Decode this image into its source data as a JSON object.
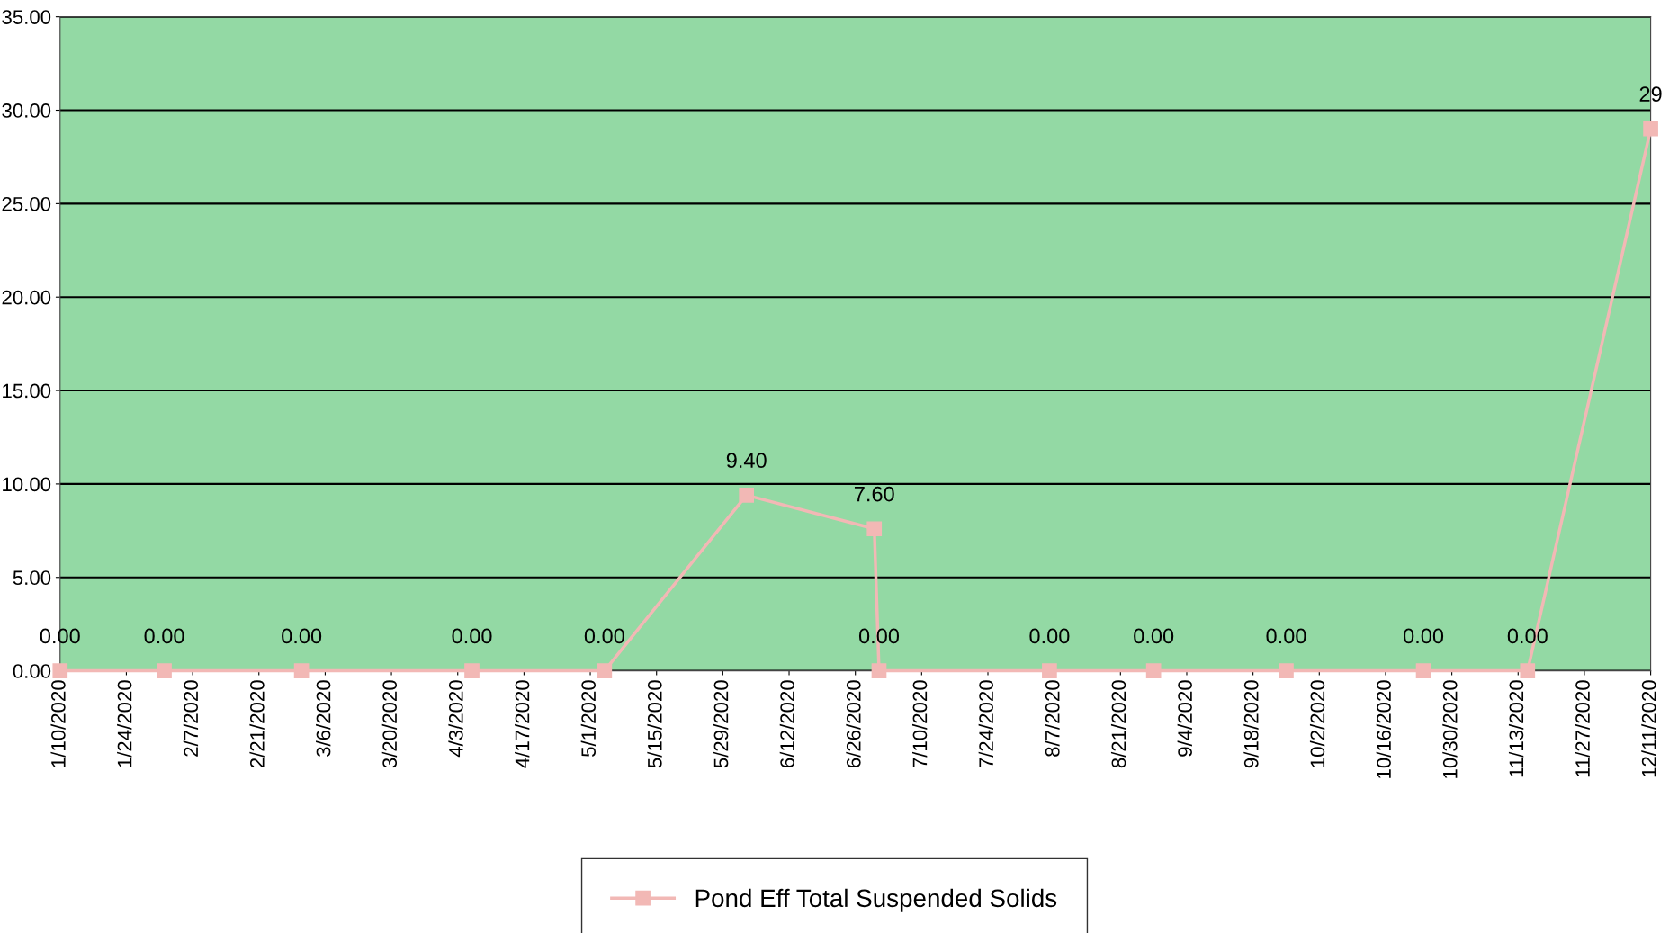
{
  "chart_data": {
    "type": "line",
    "x": [
      "2020-01-10",
      "2020-02-01",
      "2020-03-01",
      "2020-04-06",
      "2020-05-04",
      "2020-06-03",
      "2020-06-30",
      "2020-07-01",
      "2020-08-06",
      "2020-08-28",
      "2020-09-25",
      "2020-10-24",
      "2020-11-15",
      "2020-12-11"
    ],
    "series": [
      {
        "name": "Pond Eff Total Suspended Solids",
        "color": "#f2b8b5",
        "values": [
          0,
          0,
          0,
          0,
          0,
          9.4,
          7.6,
          0,
          0,
          0,
          0,
          0,
          0,
          29
        ],
        "value_labels": [
          "0.00",
          "0.00",
          "0.00",
          "0.00",
          "0.00",
          "9.40",
          "7.60",
          "0.00",
          "0.00",
          "0.00",
          "0.00",
          "0.00",
          "0.00",
          "29"
        ]
      }
    ],
    "xlim": [
      "2020-01-10",
      "2020-12-11"
    ],
    "xticks": [
      {
        "value": "2020-01-10",
        "label": "1/10/2020"
      },
      {
        "value": "2020-01-24",
        "label": "1/24/2020"
      },
      {
        "value": "2020-02-07",
        "label": "2/7/2020"
      },
      {
        "value": "2020-02-21",
        "label": "2/21/2020"
      },
      {
        "value": "2020-03-06",
        "label": "3/6/2020"
      },
      {
        "value": "2020-03-20",
        "label": "3/20/2020"
      },
      {
        "value": "2020-04-03",
        "label": "4/3/2020"
      },
      {
        "value": "2020-04-17",
        "label": "4/17/2020"
      },
      {
        "value": "2020-05-01",
        "label": "5/1/2020"
      },
      {
        "value": "2020-05-15",
        "label": "5/15/2020"
      },
      {
        "value": "2020-05-29",
        "label": "5/29/2020"
      },
      {
        "value": "2020-06-12",
        "label": "6/12/2020"
      },
      {
        "value": "2020-06-26",
        "label": "6/26/2020"
      },
      {
        "value": "2020-07-10",
        "label": "7/10/2020"
      },
      {
        "value": "2020-07-24",
        "label": "7/24/2020"
      },
      {
        "value": "2020-08-07",
        "label": "8/7/2020"
      },
      {
        "value": "2020-08-21",
        "label": "8/21/2020"
      },
      {
        "value": "2020-09-04",
        "label": "9/4/2020"
      },
      {
        "value": "2020-09-18",
        "label": "9/18/2020"
      },
      {
        "value": "2020-10-02",
        "label": "10/2/2020"
      },
      {
        "value": "2020-10-16",
        "label": "10/16/2020"
      },
      {
        "value": "2020-10-30",
        "label": "10/30/2020"
      },
      {
        "value": "2020-11-13",
        "label": "11/13/2020"
      },
      {
        "value": "2020-11-27",
        "label": "11/27/2020"
      },
      {
        "value": "2020-12-11",
        "label": "12/11/2020"
      }
    ],
    "ylim": [
      0,
      35
    ],
    "yticks": [
      {
        "value": 0,
        "label": "0.00"
      },
      {
        "value": 5,
        "label": "5.00"
      },
      {
        "value": 10,
        "label": "10.00"
      },
      {
        "value": 15,
        "label": "15.00"
      },
      {
        "value": 20,
        "label": "20.00"
      },
      {
        "value": 25,
        "label": "25.00"
      },
      {
        "value": 30,
        "label": "30.00"
      },
      {
        "value": 35,
        "label": "35.00"
      }
    ],
    "grid": "y",
    "legend": "bottom",
    "marker": "square",
    "line_style": "solid"
  }
}
